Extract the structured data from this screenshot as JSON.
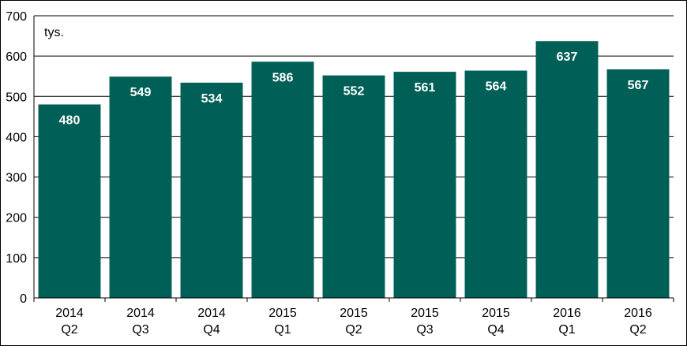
{
  "chart_data": {
    "type": "bar",
    "unit_label": "tys.",
    "categories": [
      [
        "2014",
        "Q2"
      ],
      [
        "2014",
        "Q3"
      ],
      [
        "2014",
        "Q4"
      ],
      [
        "2015",
        "Q1"
      ],
      [
        "2015",
        "Q2"
      ],
      [
        "2015",
        "Q3"
      ],
      [
        "2015",
        "Q4"
      ],
      [
        "2016",
        "Q1"
      ],
      [
        "2016",
        "Q2"
      ]
    ],
    "values": [
      480,
      549,
      534,
      586,
      552,
      561,
      564,
      637,
      567
    ],
    "data_labels": [
      "480",
      "549",
      "534",
      "586",
      "552",
      "561",
      "564",
      "637",
      "567"
    ],
    "ylim": [
      0,
      700
    ],
    "yticks": [
      0,
      100,
      200,
      300,
      400,
      500,
      600,
      700
    ],
    "grid": true,
    "legend": "none",
    "colors": {
      "bar": "#005F56",
      "grid": "#000000",
      "label": "#FFFFFF"
    }
  }
}
